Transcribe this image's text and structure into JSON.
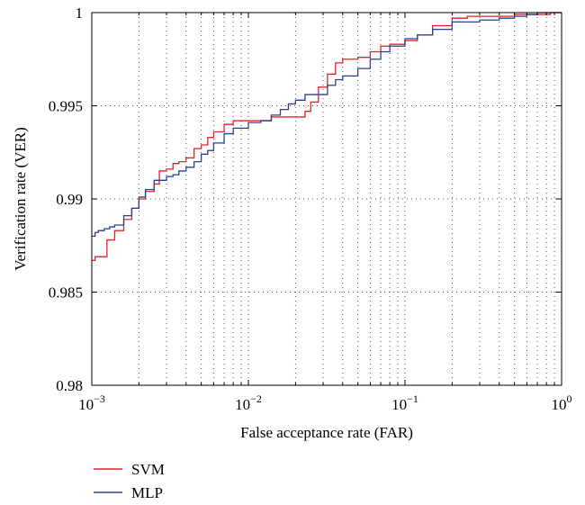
{
  "chart_data": {
    "type": "line",
    "title": "",
    "xlabel": "False acceptance rate (FAR)",
    "ylabel": "Verification rate (VER)",
    "xscale": "log",
    "xlim": [
      0.001,
      1
    ],
    "ylim": [
      0.98,
      1
    ],
    "grid": true,
    "grid_style": "dotted",
    "legend_position": "below",
    "x_ticks": [
      {
        "value": 0.001,
        "base": "10",
        "exp": "−3"
      },
      {
        "value": 0.01,
        "base": "10",
        "exp": "−2"
      },
      {
        "value": 0.1,
        "base": "10",
        "exp": "−1"
      },
      {
        "value": 1,
        "base": "10",
        "exp": "0"
      }
    ],
    "y_ticks": [
      {
        "value": 0.98,
        "label": "0.98"
      },
      {
        "value": 0.985,
        "label": "0.985"
      },
      {
        "value": 0.99,
        "label": "0.99"
      },
      {
        "value": 0.995,
        "label": "0.995"
      },
      {
        "value": 1,
        "label": "1"
      }
    ],
    "series": [
      {
        "name": "SVM",
        "color": "#e8202a",
        "x": [
          0.001,
          0.00105,
          0.00112,
          0.00125,
          0.0014,
          0.0016,
          0.0018,
          0.002,
          0.0022,
          0.0025,
          0.0027,
          0.003,
          0.0033,
          0.0036,
          0.004,
          0.0045,
          0.005,
          0.0055,
          0.006,
          0.007,
          0.008,
          0.009,
          0.01,
          0.012,
          0.014,
          0.017,
          0.02,
          0.023,
          0.025,
          0.028,
          0.032,
          0.036,
          0.04,
          0.05,
          0.06,
          0.07,
          0.08,
          0.1,
          0.12,
          0.15,
          0.2,
          0.25,
          0.3,
          0.4,
          0.5,
          0.6,
          0.7,
          0.85,
          1
        ],
        "y": [
          0.9867,
          0.9869,
          0.9869,
          0.9878,
          0.9883,
          0.9889,
          0.9895,
          0.99,
          0.9904,
          0.9908,
          0.9915,
          0.9916,
          0.9919,
          0.992,
          0.9922,
          0.9927,
          0.9929,
          0.9933,
          0.9936,
          0.994,
          0.9942,
          0.9942,
          0.9942,
          0.9942,
          0.9944,
          0.9944,
          0.9944,
          0.9947,
          0.9952,
          0.996,
          0.9967,
          0.9973,
          0.9975,
          0.9976,
          0.9979,
          0.9982,
          0.9983,
          0.9985,
          0.9988,
          0.9993,
          0.9997,
          0.9998,
          0.9998,
          0.9998,
          0.9999,
          0.9999,
          0.9999,
          1.0,
          1.0
        ]
      },
      {
        "name": "MLP",
        "color": "#2b3f8f",
        "x": [
          0.001,
          0.00105,
          0.0011,
          0.0012,
          0.0013,
          0.0014,
          0.0016,
          0.0018,
          0.002,
          0.0022,
          0.0025,
          0.0028,
          0.003,
          0.0033,
          0.0036,
          0.004,
          0.0045,
          0.005,
          0.0055,
          0.006,
          0.007,
          0.008,
          0.009,
          0.01,
          0.012,
          0.014,
          0.016,
          0.018,
          0.02,
          0.023,
          0.025,
          0.028,
          0.032,
          0.036,
          0.04,
          0.05,
          0.06,
          0.07,
          0.08,
          0.1,
          0.12,
          0.15,
          0.2,
          0.25,
          0.3,
          0.4,
          0.5,
          0.6,
          0.7,
          0.85,
          1
        ],
        "y": [
          0.988,
          0.9882,
          0.9883,
          0.9884,
          0.9885,
          0.9886,
          0.9891,
          0.9895,
          0.9901,
          0.9905,
          0.991,
          0.991,
          0.9912,
          0.9913,
          0.9915,
          0.9917,
          0.992,
          0.9924,
          0.9926,
          0.993,
          0.9935,
          0.9938,
          0.9938,
          0.9941,
          0.9942,
          0.9945,
          0.9948,
          0.9951,
          0.9953,
          0.9956,
          0.9956,
          0.9956,
          0.9961,
          0.9964,
          0.9966,
          0.997,
          0.9975,
          0.9979,
          0.9982,
          0.9986,
          0.9988,
          0.9991,
          0.9995,
          0.9995,
          0.9996,
          0.9997,
          0.9998,
          0.9999,
          1.0,
          1.0,
          1.0
        ]
      }
    ]
  }
}
